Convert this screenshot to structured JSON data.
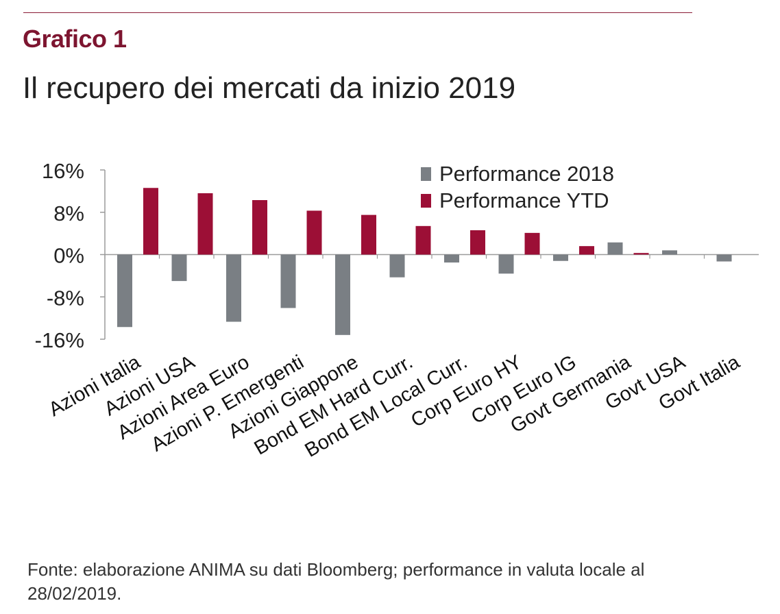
{
  "header": {
    "kicker": "Grafico 1",
    "title": "Il recupero dei mercati da inizio 2019"
  },
  "footer": {
    "source": "Fonte: elaborazione ANIMA su dati Bloomberg; performance in valuta locale al 28/02/2019."
  },
  "colors": {
    "accent": "#7d1530",
    "series_2018": "#7a7f84",
    "series_ytd": "#9c0f36",
    "axis": "#9a9a9a"
  },
  "chart_data": {
    "type": "bar",
    "categories": [
      "Azioni Italia",
      "Azioni USA",
      "Azioni Area Euro",
      "Azioni P. Emergenti",
      "Azioni Giappone",
      "Bond EM Hard Curr.",
      "Bond EM Local Curr.",
      "Corp Euro HY",
      "Corp Euro IG",
      "Govt Germania",
      "Govt USA",
      "Govt Italia"
    ],
    "series": [
      {
        "name": "Performance 2018",
        "values": [
          -13.7,
          -5.0,
          -12.7,
          -10.1,
          -15.2,
          -4.3,
          -1.5,
          -3.6,
          -1.2,
          2.3,
          0.8,
          -1.3
        ]
      },
      {
        "name": "Performance YTD",
        "values": [
          12.6,
          11.6,
          10.3,
          8.3,
          7.5,
          5.4,
          4.6,
          4.1,
          1.6,
          0.3,
          0.0,
          0.0
        ]
      }
    ],
    "yticks": [
      "16%",
      "8%",
      "0%",
      "-8%",
      "-16%"
    ],
    "ylim": [
      -16,
      16
    ],
    "legend_position": "top-right",
    "grid": false
  }
}
